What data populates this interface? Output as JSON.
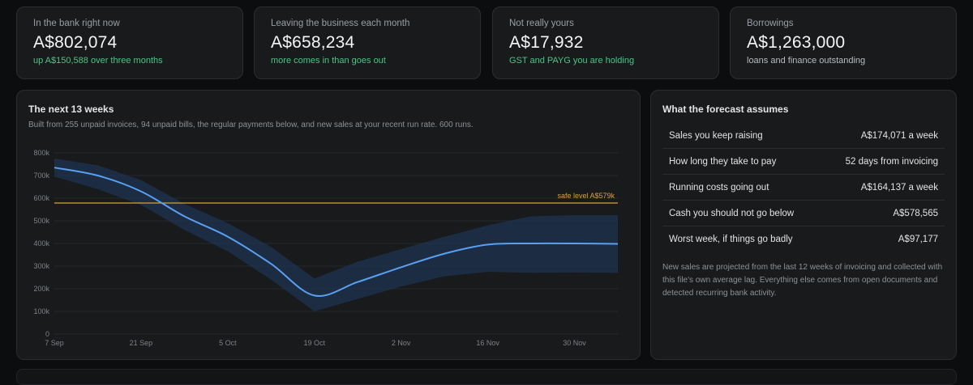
{
  "kpis": [
    {
      "label": "In the bank right now",
      "value": "A$802,074",
      "sub": "up A$150,588 over three months",
      "sub_tone": "green"
    },
    {
      "label": "Leaving the business each month",
      "value": "A$658,234",
      "sub": "more comes in than goes out",
      "sub_tone": "green"
    },
    {
      "label": "Not really yours",
      "value": "A$17,932",
      "sub": "GST and PAYG you are holding",
      "sub_tone": "green"
    },
    {
      "label": "Borrowings",
      "value": "A$1,263,000",
      "sub": "loans and finance outstanding",
      "sub_tone": "muted"
    }
  ],
  "forecast": {
    "title": "The next 13 weeks",
    "description": "Built from 255 unpaid invoices, 94 unpaid bills, the regular payments below, and new sales at your recent run rate. 600 runs."
  },
  "chart_data": {
    "type": "area",
    "x_ticks": [
      "7 Sep",
      "21 Sep",
      "5 Oct",
      "19 Oct",
      "2 Nov",
      "16 Nov",
      "30 Nov"
    ],
    "y_ticks": [
      "0",
      "100k",
      "200k",
      "300k",
      "400k",
      "500k",
      "600k",
      "700k",
      "800k"
    ],
    "ylim": [
      0,
      800000
    ],
    "x_weeks": [
      0,
      1,
      2,
      3,
      4,
      5,
      6,
      7,
      8,
      9,
      10,
      11,
      12,
      13
    ],
    "median": [
      735000,
      700000,
      630000,
      520000,
      430000,
      310000,
      170000,
      230000,
      295000,
      355000,
      395000,
      400000,
      400000,
      398000
    ],
    "band_upper": [
      775000,
      745000,
      680000,
      575000,
      490000,
      385000,
      245000,
      320000,
      375000,
      430000,
      480000,
      520000,
      525000,
      525000
    ],
    "band_lower": [
      695000,
      640000,
      570000,
      460000,
      365000,
      240000,
      100000,
      155000,
      210000,
      255000,
      275000,
      270000,
      272000,
      270000
    ],
    "safe_level": 578565,
    "safe_label": "safe level A$579k",
    "colors": {
      "line": "#5aa0f0",
      "band": "#1e3350",
      "safe": "#d6a23a",
      "grid": "#26292c",
      "tick": "#7e8388"
    }
  },
  "assumptions": {
    "title": "What the forecast assumes",
    "rows": [
      {
        "label": "Sales you keep raising",
        "value": "A$174,071 a week"
      },
      {
        "label": "How long they take to pay",
        "value": "52 days from invoicing"
      },
      {
        "label": "Running costs going out",
        "value": "A$164,137 a week"
      },
      {
        "label": "Cash you should not go below",
        "value": "A$578,565"
      },
      {
        "label": "Worst week, if things go badly",
        "value": "A$97,177"
      }
    ],
    "note": "New sales are projected from the last 12 weeks of invoicing and collected with this file's own average lag. Everything else comes from open documents and detected recurring bank activity."
  }
}
